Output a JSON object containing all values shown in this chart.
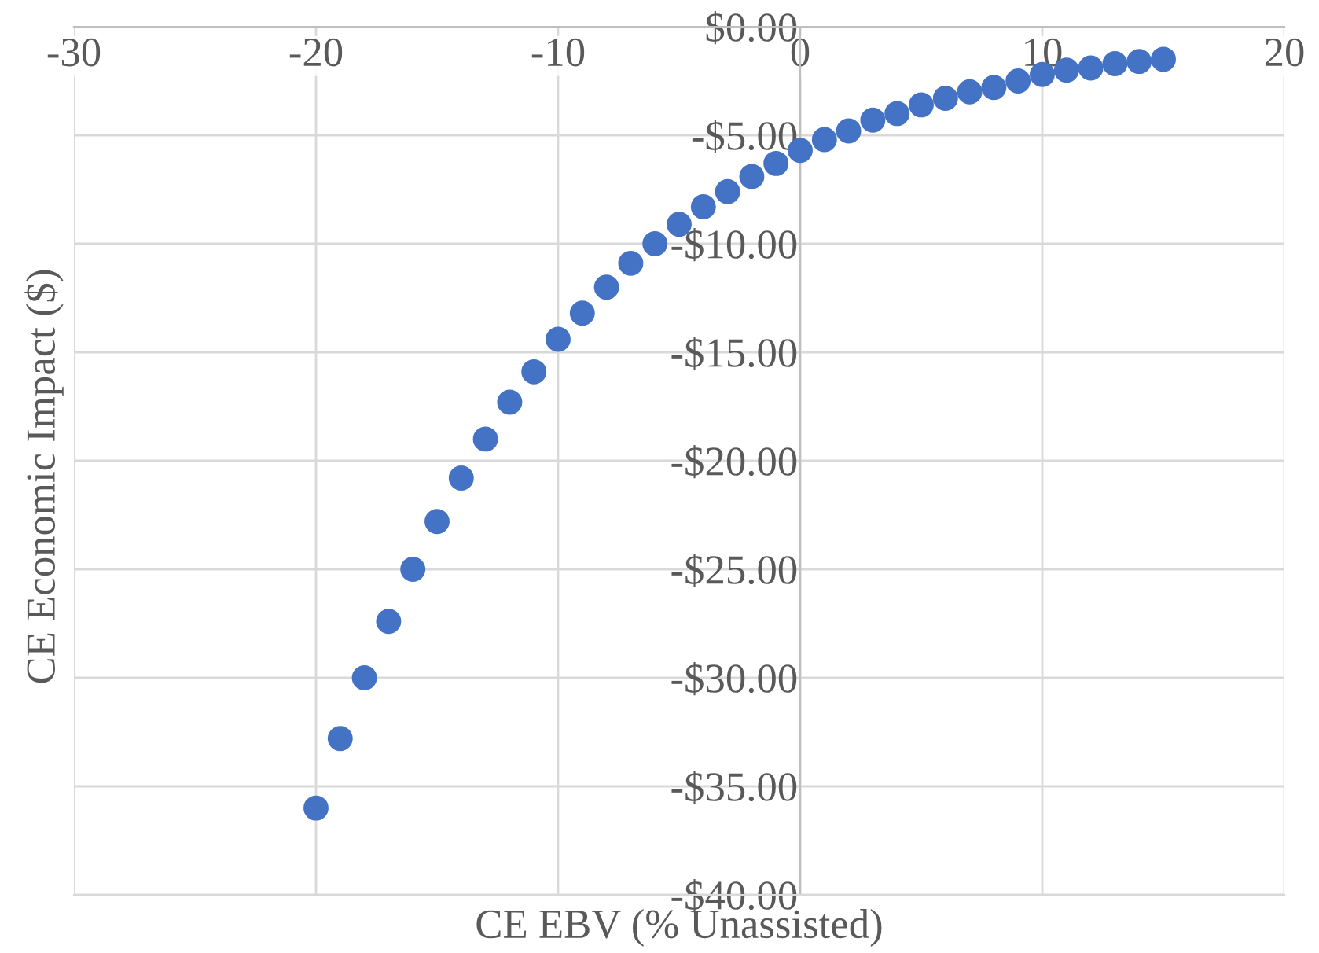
{
  "chart_data": {
    "type": "scatter",
    "xlabel": "CE EBV (% Unassisted)",
    "ylabel": "CE Economic Impact ($)",
    "x": [
      -20,
      -19,
      -18,
      -17,
      -16,
      -15,
      -14,
      -13,
      -12,
      -11,
      -10,
      -9,
      -8,
      -7,
      -6,
      -5,
      -4,
      -3,
      -2,
      -1,
      0,
      1,
      2,
      3,
      4,
      5,
      6,
      7,
      8,
      9,
      10,
      11,
      12,
      13,
      14,
      15
    ],
    "series": [
      {
        "color": "#4472c4",
        "values": [
          -36.0,
          -32.8,
          -30.0,
          -27.4,
          -25.0,
          -22.8,
          -20.8,
          -19.0,
          -17.3,
          -15.9,
          -14.4,
          -13.2,
          -12.0,
          -10.9,
          -10.0,
          -9.1,
          -8.3,
          -7.6,
          -6.9,
          -6.3,
          -5.7,
          -5.2,
          -4.8,
          -4.3,
          -4.0,
          -3.6,
          -3.3,
          -3.0,
          -2.8,
          -2.5,
          -2.2,
          -2.0,
          -1.9,
          -1.7,
          -1.6,
          -1.5
        ]
      }
    ],
    "xlim": [
      -30,
      20
    ],
    "xticks": [
      -30,
      -20,
      -10,
      0,
      10,
      20
    ],
    "ylim": [
      -40,
      0
    ],
    "yticks": [
      {
        "value": -40,
        "label": "-$40.00"
      },
      {
        "value": -35,
        "label": "-$35.00"
      },
      {
        "value": -30,
        "label": "-$30.00"
      },
      {
        "value": -25,
        "label": "-$25.00"
      },
      {
        "value": -20,
        "label": "-$20.00"
      },
      {
        "value": -15,
        "label": "-$15.00"
      },
      {
        "value": -10,
        "label": "-$10.00"
      },
      {
        "value": -5,
        "label": "-$5.00"
      },
      {
        "value": 0,
        "label": "$0.00"
      }
    ],
    "grid": true,
    "marker": "circle",
    "legend": false
  }
}
